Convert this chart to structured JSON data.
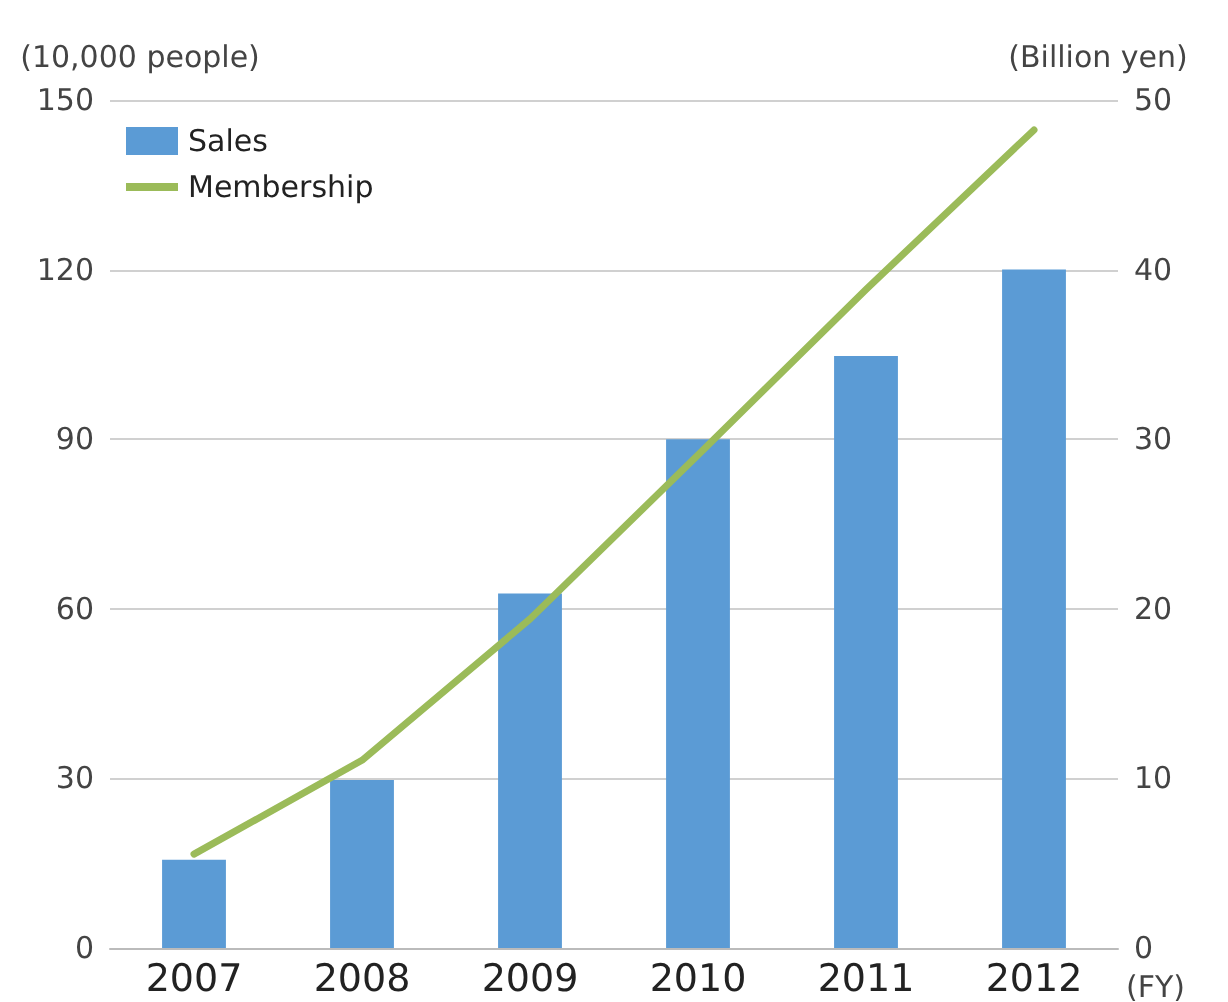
{
  "chart_data": {
    "type": "bar",
    "categories": [
      "2007",
      "2008",
      "2009",
      "2010",
      "2011",
      "2012"
    ],
    "xlabel": "(FY)",
    "ylabel": "(10,000 people)",
    "y2label": "(Billion yen)",
    "series": [
      {
        "name": "Sales",
        "axis": "y2",
        "color": "#5b9bd5",
        "values": [
          5.2,
          9.9,
          20.9,
          30.0,
          34.9,
          40.0
        ]
      },
      {
        "name": "Membership",
        "type": "line",
        "color": "#9bbb59",
        "values": [
          16.6,
          33.2,
          58.2,
          87.2,
          116.5,
          144.7
        ]
      }
    ],
    "ylim": [
      0,
      150
    ],
    "yticks": [
      0,
      30,
      60,
      90,
      120,
      150
    ],
    "y2lim": [
      0,
      50
    ],
    "y2ticks": [
      0,
      10,
      20,
      30,
      40,
      50
    ],
    "grid": "y",
    "legend": "top left",
    "marker": "none",
    "line_style": "solid"
  }
}
